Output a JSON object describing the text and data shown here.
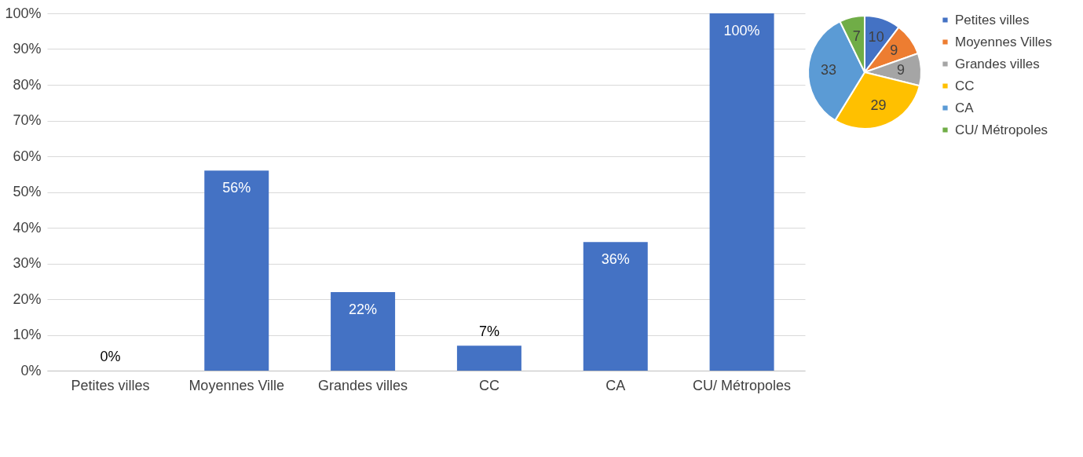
{
  "chart_data": [
    {
      "type": "bar",
      "categories": [
        "Petites villes",
        "Moyennes Ville",
        "Grandes villes",
        "CC",
        "CA",
        "CU/ Métropoles"
      ],
      "series": [
        {
          "color": "#4472c4",
          "values": [
            0,
            56,
            22,
            7,
            36,
            100
          ],
          "value_labels": [
            "0%",
            "56%",
            "22%",
            "7%",
            "36%",
            "100%"
          ]
        }
      ],
      "ylim": [
        0,
        100
      ],
      "yticks": [
        {
          "value": 0,
          "label": "0%"
        },
        {
          "value": 10,
          "label": "10%"
        },
        {
          "value": 20,
          "label": "20%"
        },
        {
          "value": 30,
          "label": "30%"
        },
        {
          "value": 40,
          "label": "40%"
        },
        {
          "value": 50,
          "label": "50%"
        },
        {
          "value": 60,
          "label": "60%"
        },
        {
          "value": 70,
          "label": "70%"
        },
        {
          "value": 80,
          "label": "80%"
        },
        {
          "value": 90,
          "label": "90%"
        },
        {
          "value": 100,
          "label": "100%"
        }
      ],
      "grid": "y"
    },
    {
      "type": "pie",
      "categories": [
        "Petites villes",
        "Moyennes Villes",
        "Grandes villes",
        "CC",
        "CA",
        "CU/ Métropoles"
      ],
      "values": [
        10,
        9,
        9,
        29,
        33,
        7
      ],
      "colors": [
        "#4472c4",
        "#ed7d31",
        "#a5a5a5",
        "#ffc000",
        "#5b9bd5",
        "#70ad47"
      ],
      "data_labels": true,
      "legend": "right"
    }
  ]
}
